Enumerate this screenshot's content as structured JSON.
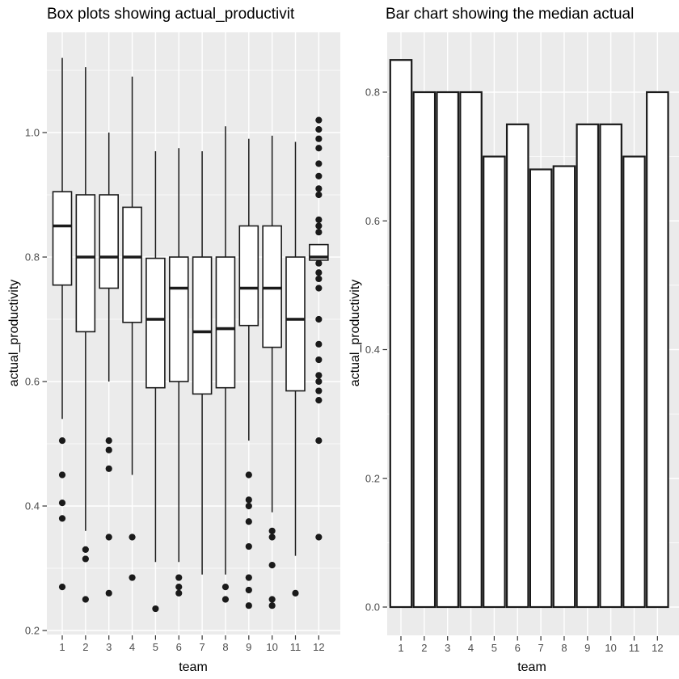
{
  "figure": {
    "background": "#ffffff",
    "panel_background": "#ebebeb",
    "grid_color": "#ffffff",
    "shape_stroke": "#1a1a1a",
    "shape_fill": "#ffffff",
    "outlier_color": "#1a1a1a",
    "tick_label_color": "#4d4d4d",
    "tick_mark_color": "#333333",
    "text_color": "#000000"
  },
  "chart_data": [
    {
      "type": "boxplot",
      "title": "Box plots showing actual_productivit",
      "xlabel": "team",
      "ylabel": "actual_productivity",
      "categories": [
        "1",
        "2",
        "3",
        "4",
        "5",
        "6",
        "7",
        "8",
        "9",
        "10",
        "11",
        "12"
      ],
      "y_major_tick_labels": [
        "0.2",
        "0.4",
        "0.6",
        "0.8",
        "1.0"
      ],
      "y_minor_ticks": [
        0.3,
        0.5,
        0.7,
        0.9,
        1.1
      ],
      "ylim": [
        0.193,
        1.161
      ],
      "grid": true,
      "legend": "none",
      "boxes": [
        {
          "team": "1",
          "whisker_low": 0.54,
          "q1": 0.755,
          "median": 0.85,
          "q3": 0.905,
          "whisker_high": 1.12,
          "outliers": [
            0.505,
            0.45,
            0.405,
            0.38,
            0.27
          ]
        },
        {
          "team": "2",
          "whisker_low": 0.36,
          "q1": 0.68,
          "median": 0.8,
          "q3": 0.9,
          "whisker_high": 1.105,
          "outliers": [
            0.33,
            0.315,
            0.25
          ]
        },
        {
          "team": "3",
          "whisker_low": 0.6,
          "q1": 0.75,
          "median": 0.8,
          "q3": 0.9,
          "whisker_high": 1.0,
          "outliers": [
            0.505,
            0.49,
            0.46,
            0.35,
            0.26
          ]
        },
        {
          "team": "4",
          "whisker_low": 0.45,
          "q1": 0.695,
          "median": 0.8,
          "q3": 0.88,
          "whisker_high": 1.09,
          "outliers": [
            0.35,
            0.285
          ]
        },
        {
          "team": "5",
          "whisker_low": 0.31,
          "q1": 0.59,
          "median": 0.7,
          "q3": 0.798,
          "whisker_high": 0.97,
          "outliers": [
            0.235
          ]
        },
        {
          "team": "6",
          "whisker_low": 0.31,
          "q1": 0.6,
          "median": 0.75,
          "q3": 0.8,
          "whisker_high": 0.975,
          "outliers": [
            0.285,
            0.27,
            0.26
          ]
        },
        {
          "team": "7",
          "whisker_low": 0.29,
          "q1": 0.58,
          "median": 0.68,
          "q3": 0.8,
          "whisker_high": 0.97,
          "outliers": []
        },
        {
          "team": "8",
          "whisker_low": 0.29,
          "q1": 0.59,
          "median": 0.685,
          "q3": 0.8,
          "whisker_high": 1.01,
          "outliers": [
            0.27,
            0.25
          ]
        },
        {
          "team": "9",
          "whisker_low": 0.505,
          "q1": 0.69,
          "median": 0.75,
          "q3": 0.85,
          "whisker_high": 0.99,
          "outliers": [
            0.45,
            0.41,
            0.4,
            0.375,
            0.335,
            0.285,
            0.265,
            0.24
          ]
        },
        {
          "team": "10",
          "whisker_low": 0.39,
          "q1": 0.655,
          "median": 0.75,
          "q3": 0.85,
          "whisker_high": 0.995,
          "outliers": [
            0.36,
            0.35,
            0.305,
            0.25,
            0.24
          ]
        },
        {
          "team": "11",
          "whisker_low": 0.32,
          "q1": 0.585,
          "median": 0.7,
          "q3": 0.8,
          "whisker_high": 0.985,
          "outliers": [
            0.26
          ]
        },
        {
          "team": "12",
          "whisker_low": 0.795,
          "q1": 0.795,
          "median": 0.8,
          "q3": 0.82,
          "whisker_high": 0.82,
          "outliers": [
            1.02,
            1.005,
            0.99,
            0.975,
            0.95,
            0.93,
            0.91,
            0.9,
            0.86,
            0.85,
            0.84,
            0.79,
            0.775,
            0.765,
            0.75,
            0.7,
            0.66,
            0.635,
            0.61,
            0.6,
            0.585,
            0.57,
            0.505,
            0.35
          ]
        }
      ]
    },
    {
      "type": "bar",
      "title": "Bar chart showing the median actual",
      "xlabel": "team",
      "ylabel": "actual_productivity",
      "categories": [
        "1",
        "2",
        "3",
        "4",
        "5",
        "6",
        "7",
        "8",
        "9",
        "10",
        "11",
        "12"
      ],
      "values": [
        0.85,
        0.8,
        0.8,
        0.8,
        0.7,
        0.75,
        0.68,
        0.685,
        0.75,
        0.75,
        0.7,
        0.8
      ],
      "y_major_tick_labels": [
        "0.0",
        "0.2",
        "0.4",
        "0.6",
        "0.8"
      ],
      "y_minor_ticks": [
        0.1,
        0.3,
        0.5,
        0.7
      ],
      "ylim": [
        -0.044,
        0.893
      ],
      "grid": true,
      "legend": "none"
    }
  ]
}
